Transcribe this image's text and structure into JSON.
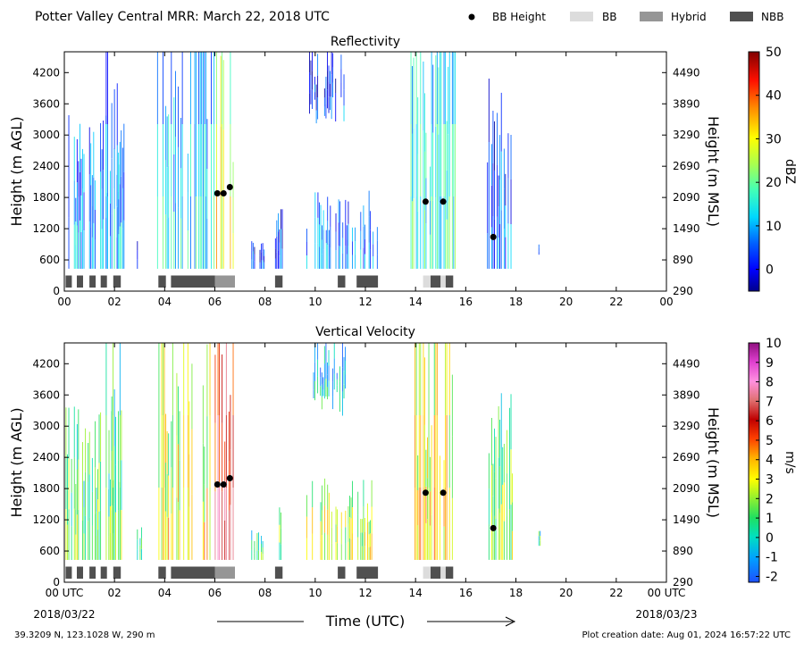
{
  "header": {
    "title": "Potter Valley Central MRR:  March 22, 2018 UTC"
  },
  "legend": [
    {
      "label": "BB Height",
      "color": "#000000",
      "kind": "dot"
    },
    {
      "label": "BB",
      "color": "#dcdcdc",
      "kind": "box"
    },
    {
      "label": "Hybrid",
      "color": "#969696",
      "kind": "box"
    },
    {
      "label": "NBB",
      "color": "#505050",
      "kind": "box"
    }
  ],
  "footer": {
    "location": "39.3209 N, 123.1028 W, 290 m",
    "created": "Plot creation date: Aug 01, 2024 16:57:22 UTC",
    "date_start": "2018/03/22",
    "date_end": "2018/03/23"
  },
  "colors": {
    "frame": "#000000",
    "bb_dot": "#000000"
  },
  "chart_data": [
    {
      "type": "heatmap",
      "title": "Reflectivity",
      "ylabel": "Height (m AGL)",
      "ylabel2": "Height (m MSL)",
      "xlim": [
        0,
        24
      ],
      "ylim": [
        0,
        4600
      ],
      "yticks": [
        0,
        600,
        1200,
        1800,
        2400,
        3000,
        3600,
        4200
      ],
      "yticks_labels": [
        "0",
        "600",
        "1200",
        "1800",
        "2400",
        "3000",
        "3600",
        "4200"
      ],
      "yticks2_labels": [
        "290",
        "890",
        "1490",
        "2090",
        "2690",
        "3290",
        "3890",
        "4490"
      ],
      "xtick_labels": [
        "00",
        "02",
        "04",
        "06",
        "08",
        "10",
        "12",
        "14",
        "16",
        "18",
        "20",
        "22",
        "00"
      ],
      "colorbar": {
        "label": "dBZ",
        "min": -5,
        "max": 50,
        "ticks": [
          "0",
          "10",
          "20",
          "30",
          "40",
          "50"
        ],
        "tick_values": [
          0,
          10,
          20,
          30,
          40,
          50
        ]
      },
      "bb_heights": [
        {
          "time": 6.1,
          "height": 1880
        },
        {
          "time": 6.35,
          "height": 1880
        },
        {
          "time": 6.6,
          "height": 2000
        },
        {
          "time": 14.4,
          "height": 1720
        },
        {
          "time": 15.1,
          "height": 1720
        },
        {
          "time": 17.1,
          "height": 1040
        }
      ],
      "bb_classes": [
        {
          "start": 0.05,
          "end": 0.3,
          "class": "NBB"
        },
        {
          "start": 0.5,
          "end": 0.75,
          "class": "NBB"
        },
        {
          "start": 1.0,
          "end": 1.25,
          "class": "NBB"
        },
        {
          "start": 1.45,
          "end": 1.7,
          "class": "NBB"
        },
        {
          "start": 1.95,
          "end": 2.25,
          "class": "NBB"
        },
        {
          "start": 3.75,
          "end": 4.05,
          "class": "NBB"
        },
        {
          "start": 4.25,
          "end": 6.0,
          "class": "NBB"
        },
        {
          "start": 6.0,
          "end": 6.8,
          "class": "Hybrid"
        },
        {
          "start": 8.4,
          "end": 8.7,
          "class": "NBB"
        },
        {
          "start": 10.9,
          "end": 11.2,
          "class": "NBB"
        },
        {
          "start": 11.65,
          "end": 12.5,
          "class": "NBB"
        },
        {
          "start": 14.3,
          "end": 14.6,
          "class": "BB"
        },
        {
          "start": 14.6,
          "end": 15.0,
          "class": "NBB"
        },
        {
          "start": 15.0,
          "end": 15.2,
          "class": "BB"
        },
        {
          "start": 15.2,
          "end": 15.5,
          "class": "NBB"
        }
      ],
      "echo_regions": [
        {
          "start": 0.0,
          "end": 2.4,
          "bottom": 430,
          "top": 3400,
          "level": 0.28
        },
        {
          "start": 1.6,
          "end": 2.3,
          "bottom": 430,
          "top": 4600,
          "level": 0.3
        },
        {
          "start": 2.9,
          "end": 3.1,
          "bottom": 430,
          "top": 1150,
          "level": 0.18
        },
        {
          "start": 3.7,
          "end": 6.0,
          "bottom": 430,
          "top": 4600,
          "level": 0.35
        },
        {
          "start": 6.0,
          "end": 6.8,
          "bottom": 430,
          "top": 4600,
          "level": 0.62
        },
        {
          "start": 7.4,
          "end": 8.0,
          "bottom": 430,
          "top": 1000,
          "level": 0.18
        },
        {
          "start": 8.4,
          "end": 8.7,
          "bottom": 430,
          "top": 1600,
          "level": 0.2
        },
        {
          "start": 9.7,
          "end": 11.2,
          "bottom": 3200,
          "top": 4600,
          "level": 0.18
        },
        {
          "start": 9.6,
          "end": 12.5,
          "bottom": 430,
          "top": 2000,
          "level": 0.25
        },
        {
          "start": 13.8,
          "end": 15.6,
          "bottom": 430,
          "top": 4600,
          "level": 0.4
        },
        {
          "start": 16.8,
          "end": 17.9,
          "bottom": 430,
          "top": 4100,
          "level": 0.22
        },
        {
          "start": 18.9,
          "end": 19.0,
          "bottom": 700,
          "top": 1000,
          "level": 0.15
        }
      ]
    },
    {
      "type": "heatmap",
      "title": "Vertical Velocity",
      "ylabel": "Height (m AGL)",
      "ylabel2": "Height (m MSL)",
      "xlim": [
        0,
        24
      ],
      "ylim": [
        0,
        4600
      ],
      "yticks": [
        0,
        600,
        1200,
        1800,
        2400,
        3000,
        3600,
        4200
      ],
      "yticks_labels": [
        "0",
        "600",
        "1200",
        "1800",
        "2400",
        "3000",
        "3600",
        "4200"
      ],
      "yticks2_labels": [
        "290",
        "890",
        "1490",
        "2090",
        "2690",
        "3290",
        "3890",
        "4490"
      ],
      "xtick_labels": [
        "00 UTC",
        "02",
        "04",
        "06",
        "08",
        "10",
        "12",
        "14",
        "16",
        "18",
        "20",
        "22",
        "00 UTC"
      ],
      "xlabel": "Time (UTC)",
      "colorbar": {
        "label": "m/s",
        "min": -2.3,
        "max": 10,
        "ticks": [
          "-2",
          "-1",
          "0",
          "1",
          "2",
          "3",
          "4",
          "5",
          "6",
          "7",
          "8",
          "9",
          "10"
        ],
        "tick_values": [
          -2,
          -1,
          0,
          1,
          2,
          3,
          4,
          5,
          6,
          7,
          8,
          9,
          10
        ]
      },
      "bb_heights": [
        {
          "time": 6.1,
          "height": 1880
        },
        {
          "time": 6.35,
          "height": 1880
        },
        {
          "time": 6.6,
          "height": 2000
        },
        {
          "time": 14.4,
          "height": 1720
        },
        {
          "time": 15.1,
          "height": 1720
        },
        {
          "time": 17.1,
          "height": 1040
        }
      ],
      "bb_classes": [
        {
          "start": 0.05,
          "end": 0.3,
          "class": "NBB"
        },
        {
          "start": 0.5,
          "end": 0.75,
          "class": "NBB"
        },
        {
          "start": 1.0,
          "end": 1.25,
          "class": "NBB"
        },
        {
          "start": 1.45,
          "end": 1.7,
          "class": "NBB"
        },
        {
          "start": 1.95,
          "end": 2.25,
          "class": "NBB"
        },
        {
          "start": 3.75,
          "end": 4.05,
          "class": "NBB"
        },
        {
          "start": 4.25,
          "end": 6.0,
          "class": "NBB"
        },
        {
          "start": 6.0,
          "end": 6.8,
          "class": "Hybrid"
        },
        {
          "start": 8.4,
          "end": 8.7,
          "class": "NBB"
        },
        {
          "start": 10.9,
          "end": 11.2,
          "class": "NBB"
        },
        {
          "start": 11.65,
          "end": 12.5,
          "class": "NBB"
        },
        {
          "start": 14.3,
          "end": 14.6,
          "class": "BB"
        },
        {
          "start": 14.6,
          "end": 15.0,
          "class": "NBB"
        },
        {
          "start": 15.0,
          "end": 15.2,
          "class": "BB"
        },
        {
          "start": 15.2,
          "end": 15.5,
          "class": "NBB"
        }
      ],
      "echo_regions": [
        {
          "start": 0.0,
          "end": 2.4,
          "bottom": 430,
          "top": 3400,
          "level": 0.33
        },
        {
          "start": 1.6,
          "end": 2.3,
          "bottom": 430,
          "top": 4600,
          "level": 0.32
        },
        {
          "start": 2.9,
          "end": 3.1,
          "bottom": 430,
          "top": 1150,
          "level": 0.3
        },
        {
          "start": 3.7,
          "end": 6.0,
          "bottom": 430,
          "top": 4600,
          "level": 0.45
        },
        {
          "start": 6.0,
          "end": 6.8,
          "bottom": 430,
          "top": 4600,
          "level": 0.72
        },
        {
          "start": 7.4,
          "end": 8.0,
          "bottom": 430,
          "top": 1000,
          "level": 0.3
        },
        {
          "start": 8.4,
          "end": 8.7,
          "bottom": 430,
          "top": 1600,
          "level": 0.32
        },
        {
          "start": 9.7,
          "end": 11.2,
          "bottom": 3200,
          "top": 4600,
          "level": 0.2
        },
        {
          "start": 9.6,
          "end": 12.5,
          "bottom": 430,
          "top": 2000,
          "level": 0.42
        },
        {
          "start": 13.8,
          "end": 15.6,
          "bottom": 430,
          "top": 4600,
          "level": 0.48
        },
        {
          "start": 16.8,
          "end": 17.9,
          "bottom": 430,
          "top": 4100,
          "level": 0.35
        },
        {
          "start": 18.9,
          "end": 19.0,
          "bottom": 700,
          "top": 1000,
          "level": 0.3
        }
      ]
    }
  ]
}
